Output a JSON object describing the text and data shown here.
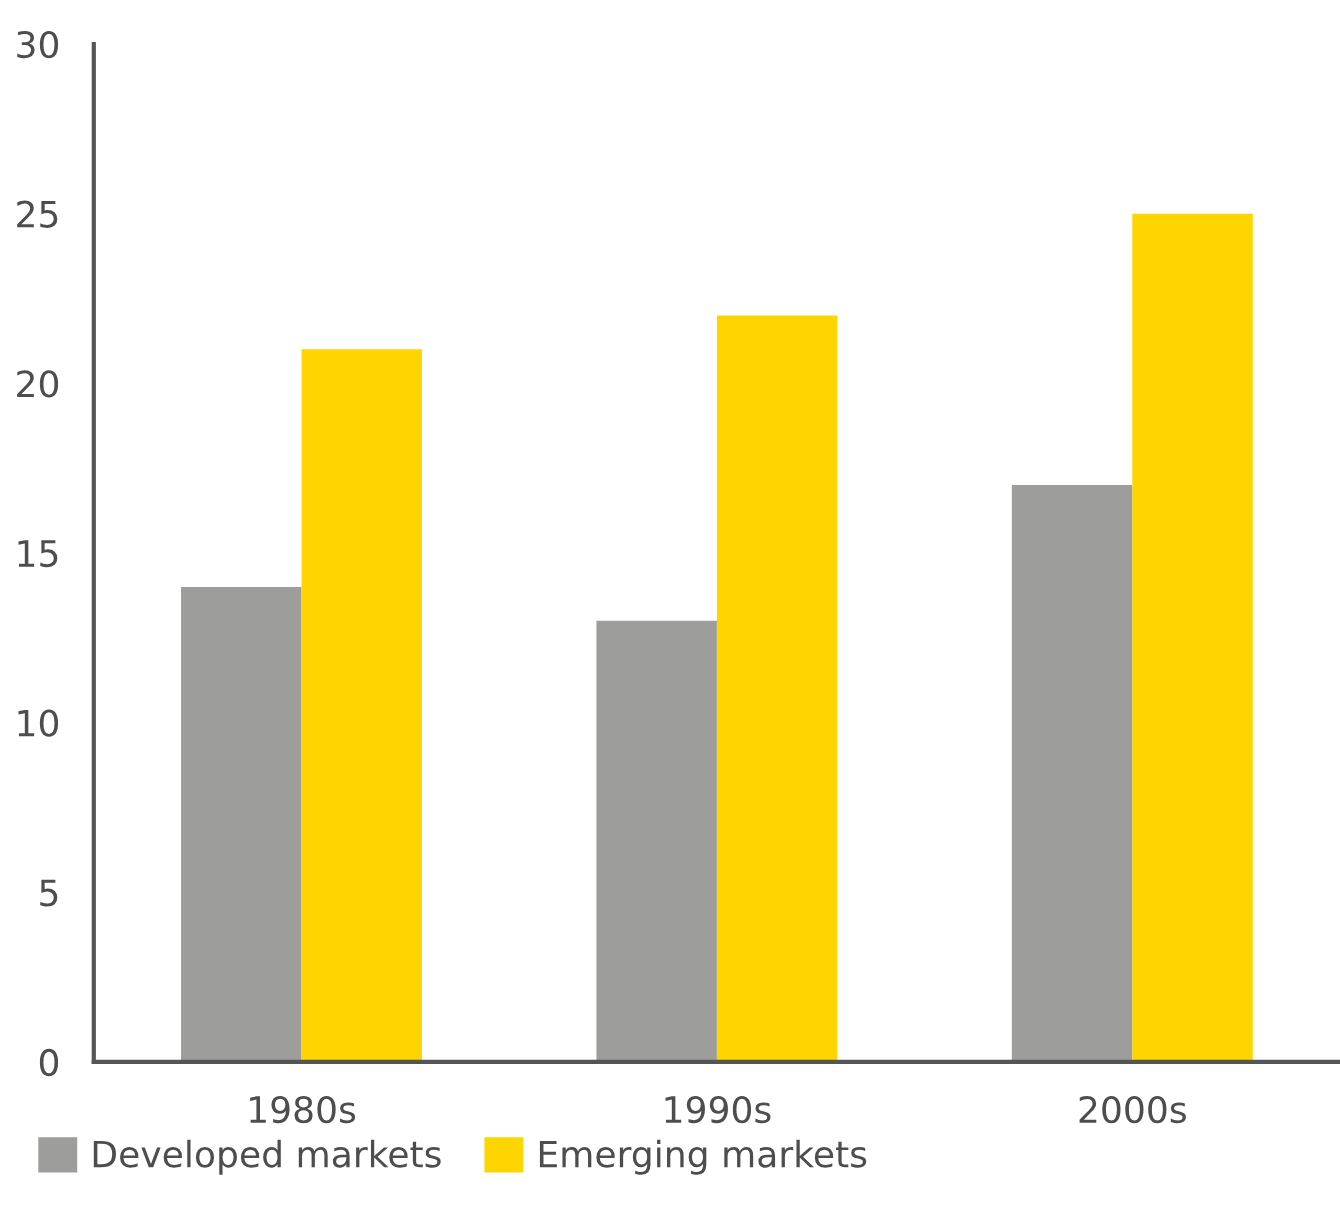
{
  "chart_data": {
    "type": "bar",
    "categories": [
      "1980s",
      "1990s",
      "2000s"
    ],
    "series": [
      {
        "name": "Developed markets",
        "color": "#9d9d9c",
        "values": [
          14,
          13,
          17
        ]
      },
      {
        "name": "Emerging markets",
        "color": "#ffd500",
        "values": [
          21,
          22,
          25
        ]
      }
    ],
    "ylim": [
      0,
      30
    ],
    "yticks": [
      0,
      5,
      10,
      15,
      20,
      25,
      30
    ],
    "grid": false,
    "legend": "bottom left"
  }
}
